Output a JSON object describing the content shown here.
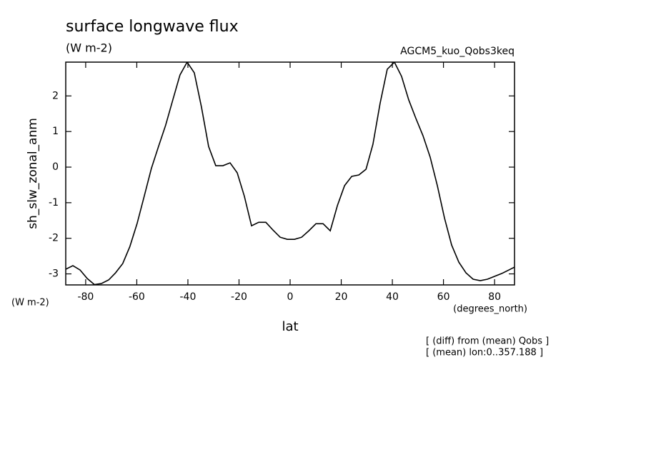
{
  "chart_data": {
    "type": "line",
    "title": "surface longwave flux",
    "subtitle": "(W m-2)",
    "annotation": "AGCM5_kuo_Qobs3keq",
    "y_label": "sh_slw_zonal_anm",
    "y_unit": "(W m-2)",
    "x_unit": "(degrees_north)",
    "x_label": "lat",
    "notes": [
      "[ (diff) from (mean) Qobs ]",
      "[ (mean) lon:0..357.188 ]"
    ],
    "color": "#000000",
    "x": [
      -87.8,
      -85.0,
      -82.2,
      -79.4,
      -76.6,
      -73.8,
      -71.0,
      -68.3,
      -65.5,
      -62.7,
      -59.9,
      -57.1,
      -54.3,
      -51.5,
      -48.7,
      -45.9,
      -43.1,
      -40.3,
      -37.5,
      -34.7,
      -31.9,
      -29.1,
      -26.3,
      -23.5,
      -20.7,
      -17.9,
      -15.1,
      -12.3,
      -9.5,
      -6.7,
      -3.9,
      -1.1,
      1.7,
      4.5,
      7.3,
      10.1,
      12.9,
      15.7,
      18.5,
      21.3,
      24.1,
      26.9,
      29.7,
      32.4,
      35.2,
      38.0,
      40.8,
      43.6,
      46.4,
      49.2,
      52.0,
      54.8,
      57.6,
      60.4,
      63.2,
      66.0,
      68.8,
      71.6,
      74.4,
      77.2,
      80.0,
      82.8,
      85.6,
      87.8
    ],
    "values": [
      -2.87,
      -2.77,
      -2.89,
      -3.13,
      -3.3,
      -3.27,
      -3.17,
      -2.97,
      -2.71,
      -2.23,
      -1.59,
      -0.82,
      -0.04,
      0.58,
      1.18,
      1.89,
      2.59,
      2.95,
      2.65,
      1.69,
      0.58,
      0.04,
      0.04,
      0.12,
      -0.16,
      -0.82,
      -1.65,
      -1.55,
      -1.55,
      -1.77,
      -1.97,
      -2.03,
      -2.03,
      -1.97,
      -1.79,
      -1.59,
      -1.59,
      -1.79,
      -1.08,
      -0.52,
      -0.26,
      -0.22,
      -0.06,
      0.64,
      1.79,
      2.75,
      2.95,
      2.55,
      1.89,
      1.37,
      0.88,
      0.28,
      -0.52,
      -1.43,
      -2.19,
      -2.67,
      -2.97,
      -3.15,
      -3.19,
      -3.15,
      -3.07,
      -2.99,
      -2.89,
      -2.81
    ],
    "xlim": [
      -87.8,
      87.8
    ],
    "xticks": [
      -80,
      -60,
      -40,
      -20,
      0,
      20,
      40,
      60,
      80
    ],
    "ylim": [
      -3.31,
      2.95
    ],
    "yticks": [
      -3,
      -2,
      -1,
      0,
      1,
      2
    ]
  }
}
